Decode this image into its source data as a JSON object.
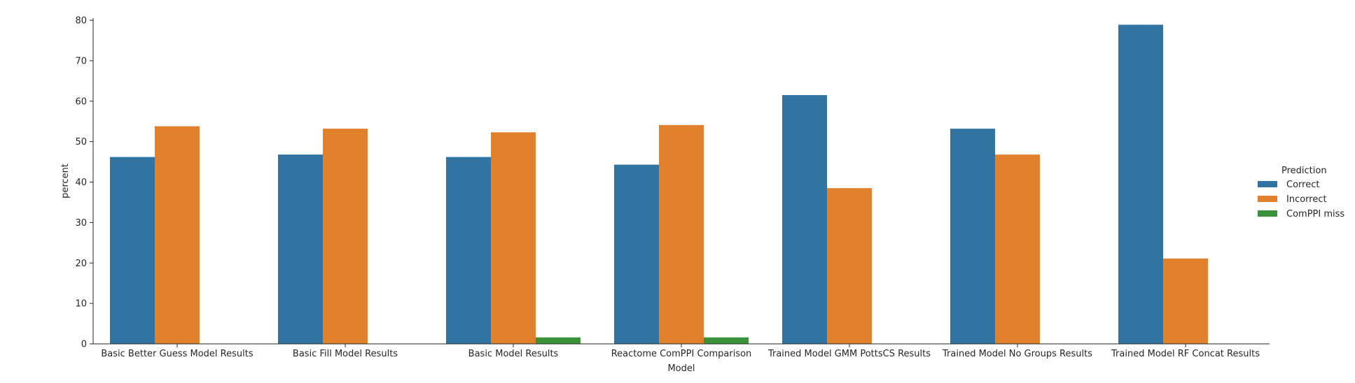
{
  "chart_data": {
    "type": "bar",
    "xlabel": "Model",
    "ylabel": "percent",
    "ylim": [
      0,
      80
    ],
    "yticks": [
      "0",
      "10",
      "20",
      "30",
      "40",
      "50",
      "60",
      "70",
      "80"
    ],
    "categories": [
      "Basic Better Guess Model Results",
      "Basic Fill Model Results",
      "Basic Model Results",
      "Reactome ComPPI Comparison",
      "Trained Model GMM PottsCS Results",
      "Trained Model No Groups Results",
      "Trained Model RF Concat Results"
    ],
    "legend_title": "Prediction",
    "legend_position": "right",
    "grid": false,
    "series": [
      {
        "name": "Correct",
        "color": "#3274a1",
        "values": [
          46.2,
          46.8,
          46.2,
          44.3,
          61.5,
          53.2,
          78.9
        ]
      },
      {
        "name": "Incorrect",
        "color": "#e1812c",
        "values": [
          53.8,
          53.2,
          52.3,
          54.1,
          38.5,
          46.8,
          21.1
        ]
      },
      {
        "name": "ComPPI miss",
        "color": "#3a923a",
        "values": [
          0,
          0,
          1.6,
          1.6,
          0,
          0,
          0
        ]
      }
    ]
  }
}
